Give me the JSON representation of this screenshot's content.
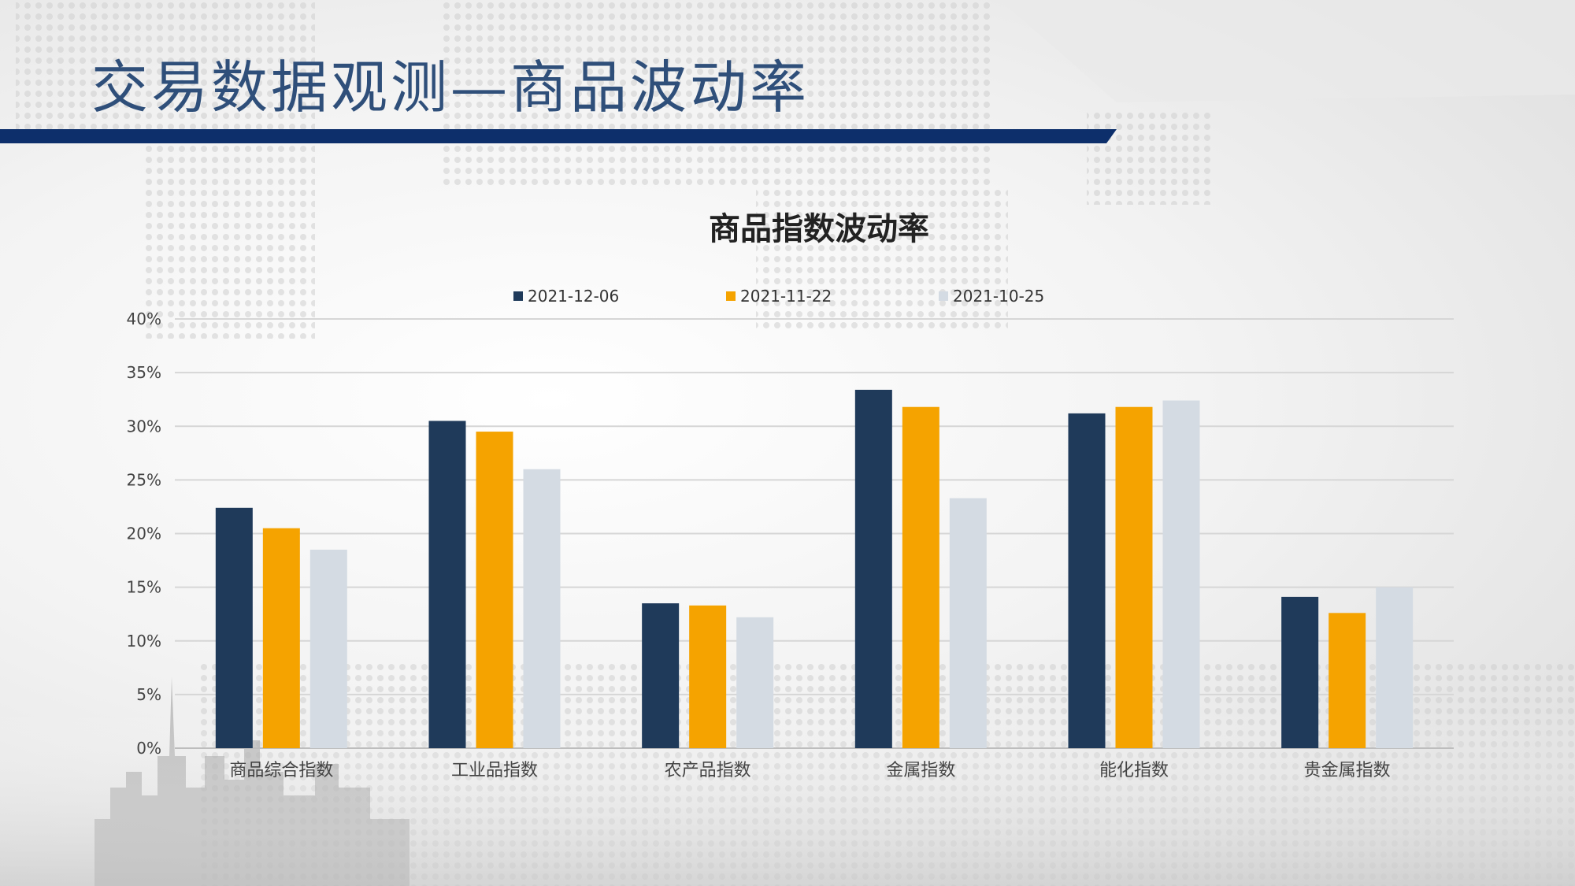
{
  "slide": {
    "title": "交易数据观测—商品波动率",
    "accent_color": "#0d2f6b"
  },
  "chart_data": {
    "type": "bar",
    "title": "商品指数波动率",
    "categories": [
      "商品综合指数",
      "工业品指数",
      "农产品指数",
      "金属指数",
      "能化指数",
      "贵金属指数"
    ],
    "series": [
      {
        "name": "2021-12-06",
        "color": "#1f3a5a",
        "values": [
          22.4,
          30.5,
          13.5,
          33.4,
          31.2,
          14.1
        ]
      },
      {
        "name": "2021-11-22",
        "color": "#f5a300",
        "values": [
          20.5,
          29.5,
          13.3,
          31.8,
          31.8,
          12.6
        ]
      },
      {
        "name": "2021-10-25",
        "color": "#d4dbe3",
        "values": [
          18.5,
          26.0,
          12.2,
          23.3,
          32.4,
          15.0
        ]
      }
    ],
    "ylim": [
      0,
      40
    ],
    "yticks": [
      0,
      5,
      10,
      15,
      20,
      25,
      30,
      35,
      40
    ],
    "ytick_labels": [
      "0%",
      "5%",
      "10%",
      "15%",
      "20%",
      "25%",
      "30%",
      "35%",
      "40%"
    ],
    "xlabel": "",
    "ylabel": "",
    "grid": true,
    "legend_position": "top"
  }
}
